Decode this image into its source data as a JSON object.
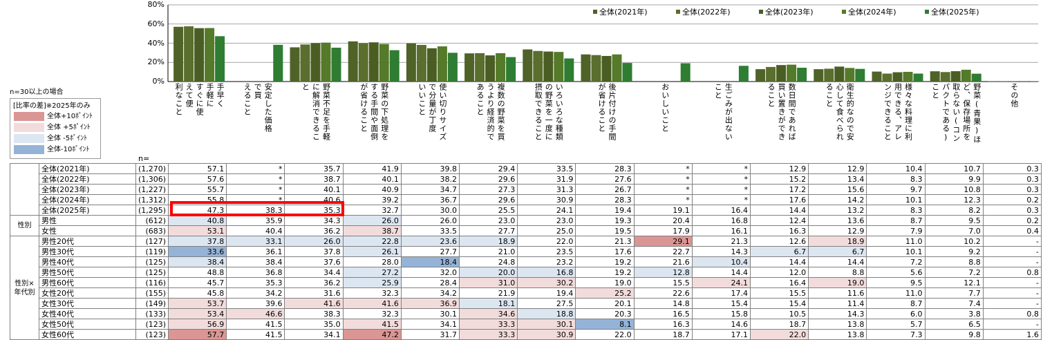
{
  "chart_data": {
    "type": "bar",
    "ylim": [
      0,
      80
    ],
    "yticks": [
      "0%",
      "20%",
      "40%",
      "60%",
      "80%"
    ],
    "categories": [
      "手早く手軽にすぐに使えて便利なこと",
      "安定した価格で買えること",
      "野菜不足を手軽に解消できること",
      "野菜の下処理をする手間や面倒が省けること",
      "使い切りサイズで分量が丁度いいこと",
      "複数の野菜を買うより経済的であること",
      "いろいろな種類の野菜を一度に摂取できること",
      "後片付けの手間が省けること",
      "おいしいこと",
      "生ごみが出ないこと",
      "数日間であれば買い置きができること",
      "衛生的なので安心して食べられること",
      "様々な料理に利用できる、アレンジできること",
      "野菜(青果)ほど、保存場所を取らない(コンパクトである)こと",
      "その他"
    ],
    "header_columns": [
      [
        "手早く",
        "手軽に",
        "すぐに使",
        "えて便",
        "利なこと"
      ],
      [
        "安定した価格",
        "で買",
        "えること"
      ],
      [
        "野菜不足を手軽",
        "に解消できるこ",
        "と"
      ],
      [
        "野菜の下処理を",
        "する手間や面倒",
        "が省けること"
      ],
      [
        "使い切りサイズ",
        "で分量が丁度",
        "いいこと"
      ],
      [
        "複数の野菜を買",
        "うより経済的で",
        "あること"
      ],
      [
        "いろいろな種類",
        "の野菜を一度に",
        "摂取できること"
      ],
      [
        "後片付けの手間",
        "が省けること"
      ],
      [
        "おいしいこと"
      ],
      [
        "生ごみが出ない",
        "こと"
      ],
      [
        "数日間であれば",
        "買い置きができ",
        "ること"
      ],
      [
        "衛生的なので安",
        "心して食べられ",
        "ること"
      ],
      [
        "様々な料理に利",
        "用できる、アレ",
        "ンジできること"
      ],
      [
        "野菜(青果)ほ",
        "ど、保存場所を",
        "取らない(コン",
        "パクトである)",
        "こと"
      ],
      [
        "その他"
      ]
    ],
    "series": [
      {
        "name": "全体(2021年)",
        "color": "#4f6228",
        "values": [
          57.1,
          null,
          35.7,
          41.9,
          39.8,
          29.4,
          33.5,
          28.3,
          null,
          null,
          12.9,
          12.9,
          10.4,
          10.7,
          0.3
        ]
      },
      {
        "name": "全体(2022年)",
        "color": "#5a6e2e",
        "values": [
          57.6,
          null,
          38.7,
          40.1,
          38.2,
          29.6,
          31.9,
          27.6,
          null,
          null,
          15.2,
          13.4,
          8.3,
          9.9,
          0.3
        ]
      },
      {
        "name": "全体(2023年)",
        "color": "#4a5e24",
        "values": [
          55.7,
          null,
          40.1,
          40.9,
          34.7,
          27.3,
          31.3,
          26.7,
          null,
          null,
          17.2,
          15.6,
          9.7,
          10.8,
          0.3
        ]
      },
      {
        "name": "全体(2024年)",
        "color": "#557a2a",
        "values": [
          55.8,
          null,
          40.6,
          39.2,
          36.7,
          29.6,
          30.9,
          28.3,
          null,
          null,
          17.6,
          14.2,
          10.1,
          12.3,
          0.2
        ]
      },
      {
        "name": "全体(2025年)",
        "color": "#2e7d32",
        "values": [
          47.3,
          38.3,
          35.3,
          32.7,
          30.0,
          25.5,
          24.1,
          19.4,
          19.1,
          16.4,
          14.4,
          13.2,
          8.3,
          8.2,
          0.3
        ]
      }
    ]
  },
  "legend": [
    "全体(2021年)",
    "全体(2022年)",
    "全体(2023年)",
    "全体(2024年)",
    "全体(2025年)"
  ],
  "notes": {
    "sample": "n=30以上の場合",
    "diff_title": "[比率の差]※2025年のみ",
    "n_header": "n="
  },
  "diff_legend": [
    {
      "label": "全体+10ﾎﾟｲﾝﾄ",
      "color": "#da9694"
    },
    {
      "label": "全体 +5ﾎﾟｲﾝﾄ",
      "color": "#f2dcdb"
    },
    {
      "label": "全体 -5ﾎﾟｲﾝﾄ",
      "color": "#dce6f1"
    },
    {
      "label": "全体-10ﾎﾟｲﾝﾄ",
      "color": "#95b3d7"
    }
  ],
  "table": {
    "groups": [
      {
        "label": "",
        "rows": 5
      },
      {
        "label": "性別",
        "rows": 2
      },
      {
        "label": "性別×\n年代別",
        "rows": 10
      }
    ],
    "rows": [
      {
        "label": "全体(2021年)",
        "n": "(1,270)",
        "values": [
          "57.1",
          "*",
          "35.7",
          "41.9",
          "39.8",
          "29.4",
          "33.5",
          "28.3",
          "*",
          "*",
          "12.9",
          "12.9",
          "10.4",
          "10.7",
          "0.3"
        ],
        "shade": []
      },
      {
        "label": "全体(2022年)",
        "n": "(1,306)",
        "values": [
          "57.6",
          "*",
          "38.7",
          "40.1",
          "38.2",
          "29.6",
          "31.9",
          "27.6",
          "*",
          "*",
          "15.2",
          "13.4",
          "8.3",
          "9.9",
          "0.3"
        ],
        "shade": []
      },
      {
        "label": "全体(2023年)",
        "n": "(1,227)",
        "values": [
          "55.7",
          "*",
          "40.1",
          "40.9",
          "34.7",
          "27.3",
          "31.3",
          "26.7",
          "*",
          "*",
          "17.2",
          "15.6",
          "9.7",
          "10.8",
          "0.3"
        ],
        "shade": []
      },
      {
        "label": "全体(2024年)",
        "n": "(1,312)",
        "values": [
          "55.8",
          "*",
          "40.6",
          "39.2",
          "36.7",
          "29.6",
          "30.9",
          "28.3",
          "*",
          "*",
          "17.6",
          "14.2",
          "10.1",
          "12.3",
          "0.2"
        ],
        "shade": []
      },
      {
        "label": "全体(2025年)",
        "n": "(1,295)",
        "values": [
          "47.3",
          "38.3",
          "35.3",
          "32.7",
          "30.0",
          "25.5",
          "24.1",
          "19.4",
          "19.1",
          "16.4",
          "14.4",
          "13.2",
          "8.3",
          "8.2",
          "0.3"
        ],
        "shade": []
      },
      {
        "label": "男性",
        "n": "(612)",
        "values": [
          "40.8",
          "35.9",
          "34.3",
          "26.0",
          "26.0",
          "23.0",
          "23.0",
          "19.3",
          "20.4",
          "16.8",
          "12.4",
          "13.6",
          "8.7",
          "9.5",
          "0.2"
        ],
        "shade": [
          "m5",
          "",
          "",
          "m5",
          "",
          "",
          "",
          "",
          "",
          "",
          "",
          "",
          "",
          "",
          ""
        ]
      },
      {
        "label": "女性",
        "n": "(683)",
        "values": [
          "53.1",
          "40.4",
          "36.2",
          "38.7",
          "33.5",
          "27.7",
          "25.0",
          "19.5",
          "17.9",
          "16.1",
          "16.3",
          "12.9",
          "7.9",
          "7.0",
          "0.4"
        ],
        "shade": [
          "p5",
          "",
          "",
          "p5",
          "",
          "",
          "",
          "",
          "",
          "",
          "",
          "",
          "",
          "",
          ""
        ]
      },
      {
        "label": "男性20代",
        "n": "(127)",
        "values": [
          "37.8",
          "33.1",
          "26.0",
          "22.8",
          "23.6",
          "18.9",
          "22.0",
          "21.3",
          "29.1",
          "21.3",
          "12.6",
          "18.9",
          "11.0",
          "10.2",
          "-"
        ],
        "shade": [
          "m5",
          "m5",
          "m5",
          "m5",
          "m5",
          "m5",
          "",
          "",
          "p10",
          "",
          "",
          "p5",
          "",
          "",
          ""
        ]
      },
      {
        "label": "男性30代",
        "n": "(119)",
        "values": [
          "33.6",
          "36.1",
          "37.8",
          "26.1",
          "27.7",
          "21.0",
          "23.5",
          "17.6",
          "22.7",
          "14.3",
          "6.7",
          "6.7",
          "10.1",
          "9.2",
          "-"
        ],
        "shade": [
          "m10",
          "",
          "",
          "m5",
          "",
          "",
          "",
          "",
          "",
          "",
          "m5",
          "m5",
          "",
          "",
          ""
        ]
      },
      {
        "label": "男性40代",
        "n": "(125)",
        "values": [
          "38.4",
          "38.4",
          "37.6",
          "28.0",
          "18.4",
          "24.8",
          "23.2",
          "19.2",
          "21.6",
          "10.4",
          "14.4",
          "14.4",
          "7.2",
          "8.8",
          "-"
        ],
        "shade": [
          "m5",
          "",
          "",
          "",
          "m10",
          "",
          "",
          "",
          "",
          "m5",
          "",
          "",
          "",
          "",
          ""
        ]
      },
      {
        "label": "男性50代",
        "n": "(125)",
        "values": [
          "48.8",
          "36.8",
          "34.4",
          "27.2",
          "32.0",
          "20.0",
          "16.8",
          "19.2",
          "12.8",
          "14.4",
          "12.0",
          "8.8",
          "5.6",
          "7.2",
          "0.8"
        ],
        "shade": [
          "",
          "",
          "",
          "m5",
          "",
          "m5",
          "m5",
          "",
          "m5",
          "",
          "",
          "",
          "",
          "",
          ""
        ]
      },
      {
        "label": "男性60代",
        "n": "(116)",
        "values": [
          "45.7",
          "35.3",
          "36.2",
          "25.9",
          "28.4",
          "31.0",
          "30.2",
          "19.0",
          "15.5",
          "24.1",
          "16.4",
          "19.0",
          "9.5",
          "12.1",
          "-"
        ],
        "shade": [
          "",
          "",
          "",
          "m5",
          "",
          "p5",
          "p5",
          "",
          "",
          "p5",
          "",
          "p5",
          "",
          "",
          ""
        ]
      },
      {
        "label": "女性20代",
        "n": "(155)",
        "values": [
          "45.8",
          "34.2",
          "31.6",
          "32.3",
          "34.2",
          "21.9",
          "19.4",
          "25.2",
          "22.6",
          "17.4",
          "15.5",
          "11.6",
          "11.0",
          "7.7",
          "-"
        ],
        "shade": [
          "",
          "",
          "",
          "",
          "",
          "",
          "",
          "p5",
          "",
          "",
          "",
          "",
          "",
          "",
          ""
        ]
      },
      {
        "label": "女性30代",
        "n": "(149)",
        "values": [
          "53.7",
          "39.6",
          "41.6",
          "41.6",
          "36.9",
          "18.1",
          "27.5",
          "20.1",
          "14.8",
          "15.4",
          "15.4",
          "11.4",
          "8.7",
          "7.4",
          "-"
        ],
        "shade": [
          "p5",
          "",
          "p5",
          "p5",
          "p5",
          "m5",
          "",
          "",
          "",
          "",
          "",
          "",
          "",
          "",
          ""
        ]
      },
      {
        "label": "女性40代",
        "n": "(133)",
        "values": [
          "53.4",
          "46.6",
          "38.3",
          "32.3",
          "30.1",
          "34.6",
          "18.8",
          "20.3",
          "16.5",
          "15.8",
          "10.5",
          "14.3",
          "6.0",
          "3.8",
          "0.8"
        ],
        "shade": [
          "p5",
          "p5",
          "",
          "",
          "",
          "p5",
          "m5",
          "",
          "",
          "",
          "",
          "",
          "",
          "",
          ""
        ]
      },
      {
        "label": "女性50代",
        "n": "(123)",
        "values": [
          "56.9",
          "41.5",
          "35.0",
          "41.5",
          "34.1",
          "33.3",
          "30.1",
          "8.1",
          "16.3",
          "14.6",
          "18.7",
          "13.8",
          "5.7",
          "6.5",
          "-"
        ],
        "shade": [
          "p5",
          "",
          "",
          "p5",
          "",
          "p5",
          "p5",
          "m10",
          "",
          "",
          "",
          "",
          "",
          "",
          ""
        ]
      },
      {
        "label": "女性60代",
        "n": "(123)",
        "values": [
          "57.7",
          "41.5",
          "34.1",
          "47.2",
          "31.7",
          "33.3",
          "30.9",
          "22.0",
          "18.7",
          "17.1",
          "22.0",
          "13.8",
          "7.3",
          "9.8",
          "1.6"
        ],
        "shade": [
          "p10",
          "",
          "",
          "p10",
          "",
          "p5",
          "p5",
          "",
          "",
          "",
          "p5",
          "",
          "",
          "",
          ""
        ]
      }
    ]
  }
}
